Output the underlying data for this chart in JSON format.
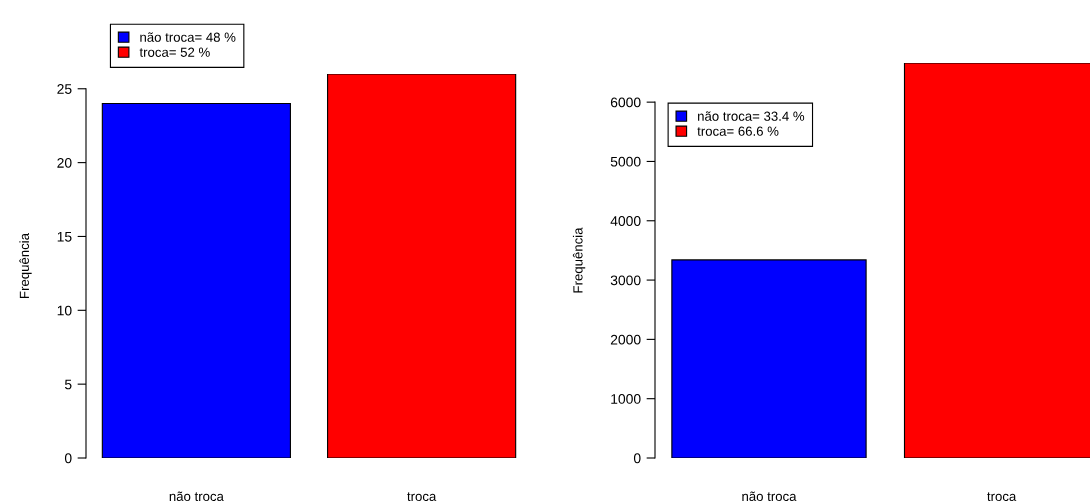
{
  "chart_data": [
    {
      "type": "bar",
      "categories": [
        "não troca",
        "troca"
      ],
      "ylabel": "Frequência",
      "series": [
        {
          "name": "não troca= 48 %",
          "color": "#0000ff",
          "values": [
            24,
            null
          ]
        },
        {
          "name": "troca= 52 %",
          "color": "#ff0000",
          "values": [
            null,
            26
          ]
        }
      ],
      "ylim": [
        0,
        26
      ],
      "yticks": [
        0,
        5,
        10,
        15,
        20,
        25
      ],
      "legend": "top"
    },
    {
      "type": "bar",
      "categories": [
        "não troca",
        "troca"
      ],
      "ylabel": "Frequência",
      "series": [
        {
          "name": "não troca= 33.4 %",
          "color": "#0000ff",
          "values": [
            3340,
            null
          ]
        },
        {
          "name": "troca= 66.6 %",
          "color": "#ff0000",
          "values": [
            null,
            6660
          ]
        }
      ],
      "ylim": [
        0,
        6660
      ],
      "yticks": [
        0,
        1000,
        2000,
        3000,
        4000,
        5000,
        6000
      ],
      "legend": "top left"
    }
  ]
}
